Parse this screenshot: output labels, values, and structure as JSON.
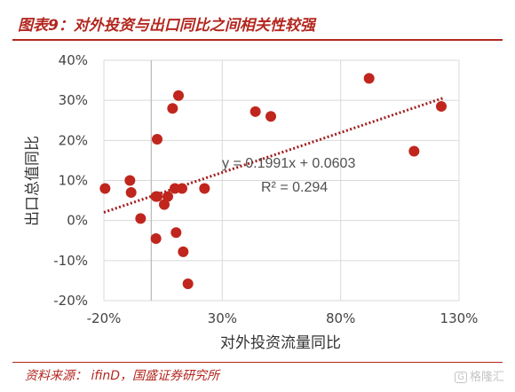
{
  "header": {
    "title": "图表9：对外投资与出口同比之间相关性较强"
  },
  "footer": {
    "source": "资料来源：  ifinD，国盛证券研究所",
    "watermark": "格隆汇",
    "watermark_logo": "G"
  },
  "colors": {
    "accent": "#b3271f",
    "point": "#c0261d",
    "trendline": "#a31b1b",
    "grid": "#d9d9d9"
  },
  "chart_data": {
    "type": "scatter",
    "title": "",
    "xlabel": "对外投资流量同比",
    "ylabel": "出口总值同比",
    "xlim": [
      -0.2,
      1.3
    ],
    "ylim": [
      -0.2,
      0.4
    ],
    "x_ticks": [
      -0.2,
      0.3,
      0.8,
      1.3
    ],
    "x_tick_labels": [
      "-20%",
      "30%",
      "80%",
      "130%"
    ],
    "y_ticks": [
      0.4,
      0.3,
      0.2,
      0.1,
      0.0,
      -0.1,
      -0.2
    ],
    "y_tick_labels": [
      "40%",
      "30%",
      "20%",
      "10%",
      "0%",
      "-10%",
      "-20%"
    ],
    "grid": true,
    "series": [
      {
        "x": [
          -0.195,
          -0.09,
          -0.085,
          -0.045,
          0.02,
          0.02,
          0.055,
          0.07,
          0.09,
          0.1,
          0.105,
          0.115,
          0.13,
          0.135,
          0.155,
          0.025,
          0.225,
          0.44,
          0.505,
          0.92,
          1.11,
          1.225,
          0.025
        ],
        "y": [
          0.08,
          0.1,
          0.07,
          0.005,
          0.06,
          -0.045,
          0.04,
          0.06,
          0.28,
          0.08,
          -0.03,
          0.312,
          0.08,
          -0.078,
          -0.158,
          0.203,
          0.08,
          0.272,
          0.26,
          0.355,
          0.173,
          0.285,
          0.06
        ]
      }
    ],
    "trendline": {
      "slope": 0.1991,
      "intercept": 0.0603,
      "equation": "y = 0.1991x + 0.0603",
      "r_squared": "R² = 0.294"
    }
  }
}
